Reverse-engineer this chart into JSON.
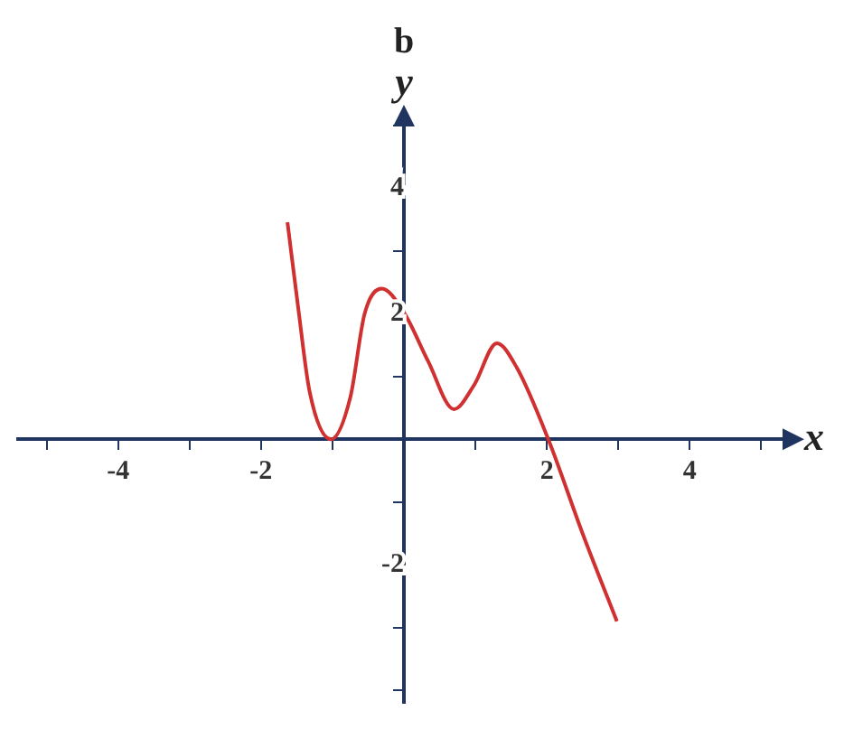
{
  "chart_data": {
    "type": "line",
    "title": "b",
    "xlabel": "x",
    "ylabel": "y",
    "x": [
      -1.63,
      -1.48,
      -1.32,
      -1.02,
      -0.75,
      -0.55,
      -0.31,
      0,
      0.34,
      0.7,
      0.98,
      1.3,
      1.58,
      2.02,
      2.5,
      2.98
    ],
    "series": [
      {
        "color": "#d03030",
        "values": [
          3.46,
          2.1,
          0.76,
          0,
          0.67,
          2.0,
          2.4,
          2.02,
          1.24,
          0.48,
          0.86,
          1.53,
          1.14,
          0,
          -1.5,
          -2.9
        ]
      }
    ],
    "xlim": [
      -5.4,
      5.4
    ],
    "ylim": [
      -4.2,
      5.1
    ],
    "xticks": [
      {
        "value": -5,
        "label": null
      },
      -4,
      {
        "value": -3,
        "label": null
      },
      -2,
      {
        "value": -1,
        "label": null
      },
      {
        "value": 1,
        "label": null
      },
      2,
      {
        "value": 3,
        "label": null
      },
      4,
      {
        "value": 5,
        "label": null
      }
    ],
    "yticks": [
      {
        "value": -4,
        "label": null
      },
      {
        "value": -3,
        "label": null
      },
      -2,
      {
        "value": -1,
        "label": null
      },
      {
        "value": 1,
        "label": null
      },
      2,
      {
        "value": 3,
        "label": null
      },
      4,
      {
        "value": 5,
        "label": null
      }
    ],
    "grid": false,
    "legend": false,
    "marker": "none",
    "line_style": "solid"
  }
}
